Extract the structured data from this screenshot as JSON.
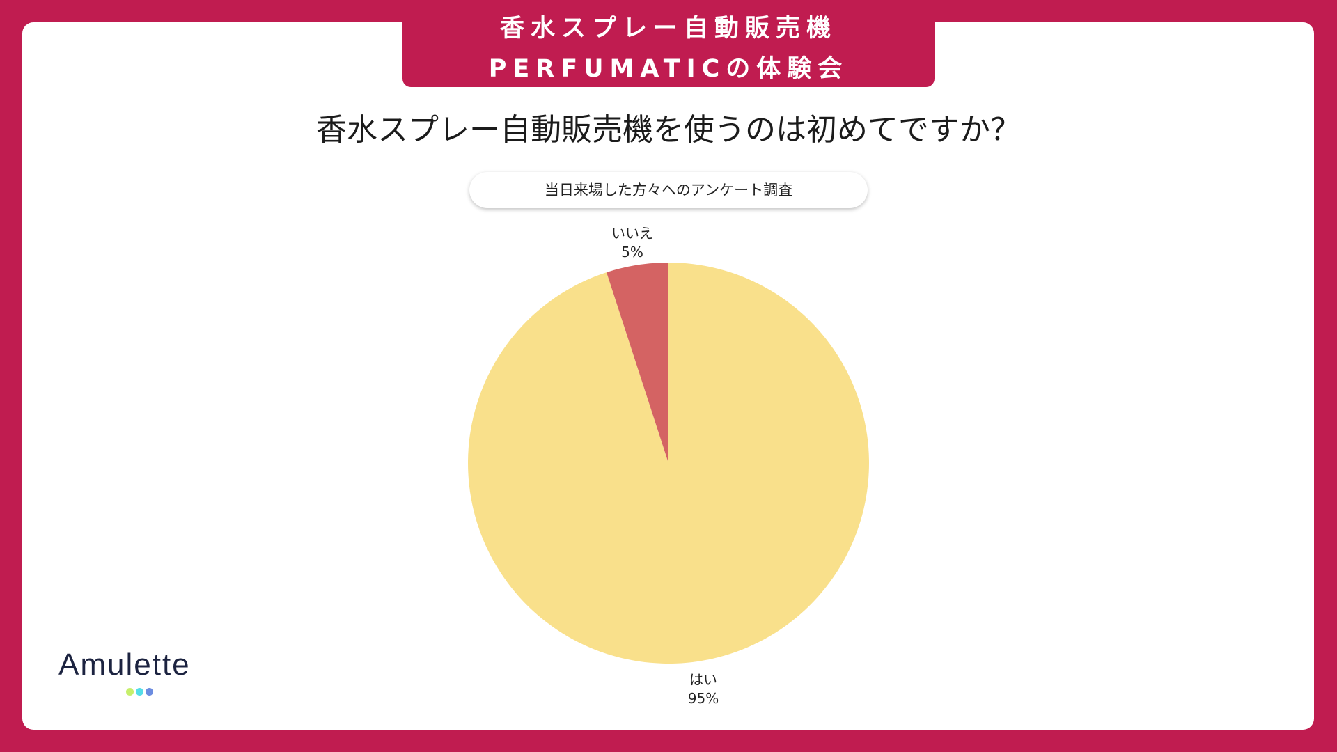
{
  "header": {
    "line1": "香水スプレー自動販売機",
    "line2": "PERFUMATICの体験会"
  },
  "question": "香水スプレー自動販売機を使うのは初めてですか？",
  "survey_note": "当日来場した方々へのアンケート調査",
  "logo": {
    "text": "Amulette",
    "dot_colors": [
      "#c6ef6b",
      "#55dde8",
      "#6c8ce0"
    ]
  },
  "colors": {
    "background": "#c01c50",
    "card": "#ffffff"
  },
  "chart_data": {
    "type": "pie",
    "title": "",
    "slices": [
      {
        "label": "はい",
        "value": 95,
        "value_label": "95%",
        "color": "#f9e08b"
      },
      {
        "label": "いいえ",
        "value": 5,
        "value_label": "5%",
        "color": "#d46363"
      }
    ],
    "start_angle_deg": 0,
    "direction": "clockwise",
    "legend": "none"
  }
}
